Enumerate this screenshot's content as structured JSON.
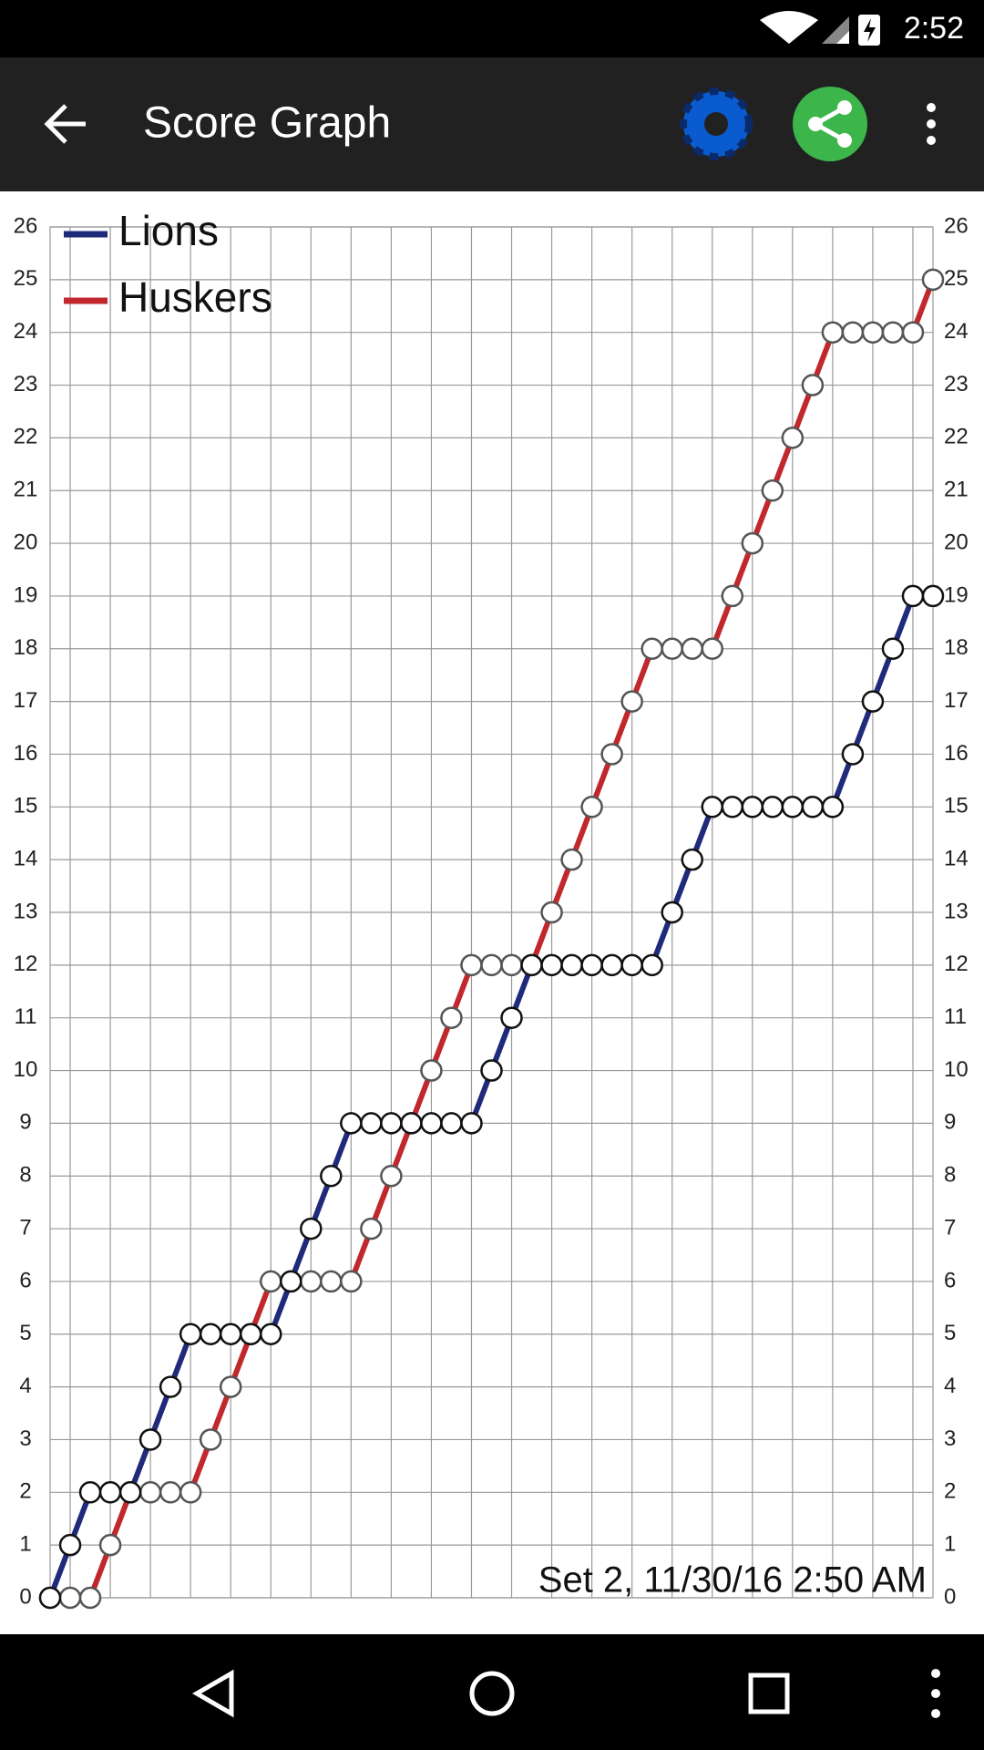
{
  "status_bar": {
    "time": "2:52"
  },
  "app_bar": {
    "title": "Score Graph"
  },
  "chart_data": {
    "type": "line",
    "annotation": "Set 2, 11/30/16 2:50 AM",
    "x": [
      0,
      1,
      2,
      3,
      4,
      5,
      6,
      7,
      8,
      9,
      10,
      11,
      12,
      13,
      14,
      15,
      16,
      17,
      18,
      19,
      20,
      21,
      22,
      23,
      24,
      25,
      26,
      27,
      28,
      29,
      30,
      31,
      32,
      33,
      34,
      35,
      36,
      37,
      38,
      39,
      40,
      41,
      42,
      43,
      44
    ],
    "series": [
      {
        "name": "Lions",
        "color": "#1f2a7a",
        "values": [
          0,
          1,
          2,
          2,
          2,
          3,
          4,
          5,
          5,
          5,
          5,
          5,
          6,
          7,
          8,
          9,
          9,
          9,
          9,
          9,
          9,
          9,
          10,
          11,
          12,
          12,
          12,
          12,
          12,
          12,
          12,
          13,
          14,
          15,
          15,
          15,
          15,
          15,
          15,
          15,
          16,
          17,
          18,
          19,
          19
        ]
      },
      {
        "name": "Huskers",
        "color": "#c0282d",
        "values": [
          0,
          0,
          0,
          1,
          2,
          2,
          2,
          2,
          3,
          4,
          5,
          6,
          6,
          6,
          6,
          6,
          7,
          8,
          9,
          10,
          11,
          12,
          12,
          12,
          12,
          13,
          14,
          15,
          16,
          17,
          18,
          18,
          18,
          18,
          19,
          20,
          21,
          22,
          23,
          24,
          24,
          24,
          24,
          24,
          25
        ]
      }
    ],
    "xlim": [
      0,
      44
    ],
    "xticks": [
      1,
      3,
      5,
      7,
      9,
      11,
      13,
      15,
      17,
      19,
      21,
      23,
      25,
      27,
      29,
      31,
      33,
      35,
      37,
      39,
      41,
      43
    ],
    "ylim": [
      0,
      26
    ],
    "yticks": [
      0,
      1,
      2,
      3,
      4,
      5,
      6,
      7,
      8,
      9,
      10,
      11,
      12,
      13,
      14,
      15,
      16,
      17,
      18,
      19,
      20,
      21,
      22,
      23,
      24,
      25,
      26
    ],
    "grid": true,
    "legend": "top-left",
    "marker_fill": "#ffffff"
  }
}
